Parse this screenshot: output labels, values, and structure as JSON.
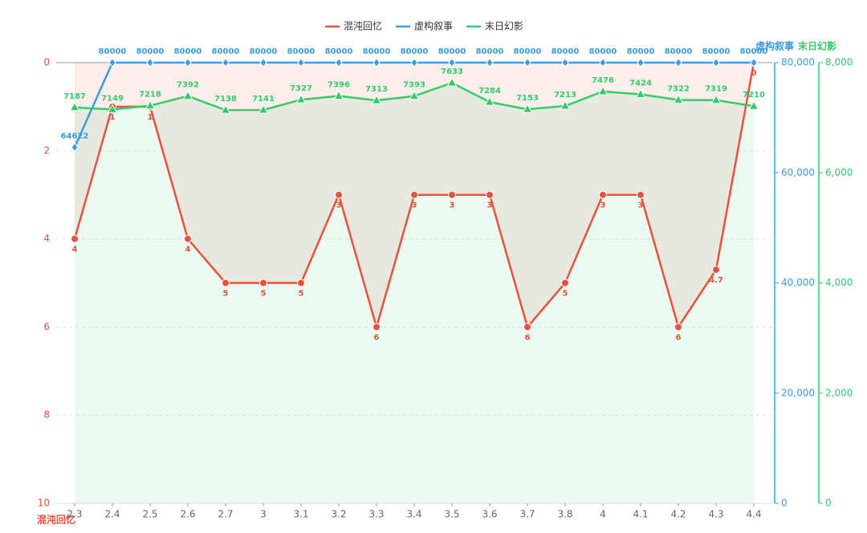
{
  "chart_data": {
    "type": "line",
    "categories": [
      "2.3",
      "2.4",
      "2.5",
      "2.6",
      "2.7",
      "3",
      "3.1",
      "3.2",
      "3.3",
      "3.4",
      "3.5",
      "3.6",
      "3.7",
      "3.8",
      "4",
      "4.1",
      "4.2",
      "4.3",
      "4.4"
    ],
    "y_label": "混沌回忆",
    "y2_label": "虚构叙事",
    "y3_label": "末日幻影",
    "ylim": [
      0,
      10
    ],
    "y_inverse": true,
    "yticks": [
      0,
      2,
      4,
      6,
      8,
      10
    ],
    "y2lim": [
      0,
      80000
    ],
    "y2ticks": [
      0,
      {
        "value": 20000,
        "label": "20,000"
      },
      {
        "value": 40000,
        "label": "40,000"
      },
      {
        "value": 60000,
        "label": "60,000"
      },
      {
        "value": 80000,
        "label": "80,000"
      }
    ],
    "y3lim": [
      0,
      8000
    ],
    "y3ticks": [
      0,
      {
        "value": 2000,
        "label": "2,000"
      },
      {
        "value": 4000,
        "label": "4,000"
      },
      {
        "value": 6000,
        "label": "6,000"
      },
      {
        "value": 8000,
        "label": "8,000"
      }
    ],
    "grid": true,
    "series": [
      {
        "name": "混沌回忆",
        "color": "#e8513f",
        "axis": "y",
        "marker": "circle",
        "area": true,
        "label_side": "below",
        "values": [
          4,
          1,
          1,
          4,
          5,
          5,
          5,
          3,
          6,
          3,
          3,
          3,
          6,
          5,
          3,
          3,
          6,
          4.7,
          0
        ]
      },
      {
        "name": "虚构叙事",
        "color": "#3c9ddc",
        "axis": "y2",
        "marker": "diamond",
        "area": false,
        "label_side": "above",
        "values": [
          64622,
          80000,
          80000,
          80000,
          80000,
          80000,
          80000,
          80000,
          80000,
          80000,
          80000,
          80000,
          80000,
          80000,
          80000,
          80000,
          80000,
          80000,
          80000
        ]
      },
      {
        "name": "末日幻影",
        "color": "#33cc6b",
        "axis": "y3",
        "marker": "triangle",
        "area": true,
        "label_side": "above",
        "values": [
          7187,
          7149,
          7218,
          7392,
          7138,
          7141,
          7327,
          7396,
          7313,
          7393,
          7633,
          7284,
          7153,
          7213,
          7476,
          7424,
          7322,
          7319,
          7210
        ]
      }
    ]
  }
}
